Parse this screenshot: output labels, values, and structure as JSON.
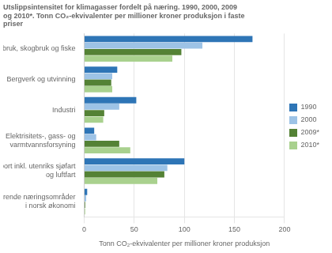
{
  "chart_data": {
    "type": "bar",
    "orientation": "horizontal",
    "title": "Utslippsintensitet for klimagasser fordelt på næring. 1990, 2000, 2009\nog 2010*. Tonn CO₂-ekvivalenter per millioner kroner produksjon i faste\npriser",
    "categories": [
      "Jordbruk, skogbruk og fiske",
      "Bergverk og utvinning",
      "Industri",
      "Elektrisitets-, gass- og\nvarmtvannsforsyning",
      "Transport inkl. utenriks sjøfart\nog luftfart",
      "Resterende næringsområder\ni norsk økonomi"
    ],
    "series": [
      {
        "name": "1990",
        "color": "#2E75B6",
        "values": [
          168,
          33,
          52,
          10,
          100,
          3
        ]
      },
      {
        "name": "2000",
        "color": "#9DC3E6",
        "values": [
          118,
          28,
          35,
          12,
          83,
          2
        ]
      },
      {
        "name": "2009*",
        "color": "#548235",
        "values": [
          97,
          27,
          20,
          35,
          80,
          1
        ]
      },
      {
        "name": "2010*",
        "color": "#A9D18E",
        "values": [
          88,
          28,
          19,
          46,
          73,
          1
        ]
      }
    ],
    "xlabel": "Tonn CO₂-ekvivalenter per millioner kroner produksjon",
    "xlim": [
      0,
      200
    ],
    "xticks": [
      0,
      50,
      100,
      150,
      200
    ],
    "grid": true,
    "legend": "right"
  }
}
